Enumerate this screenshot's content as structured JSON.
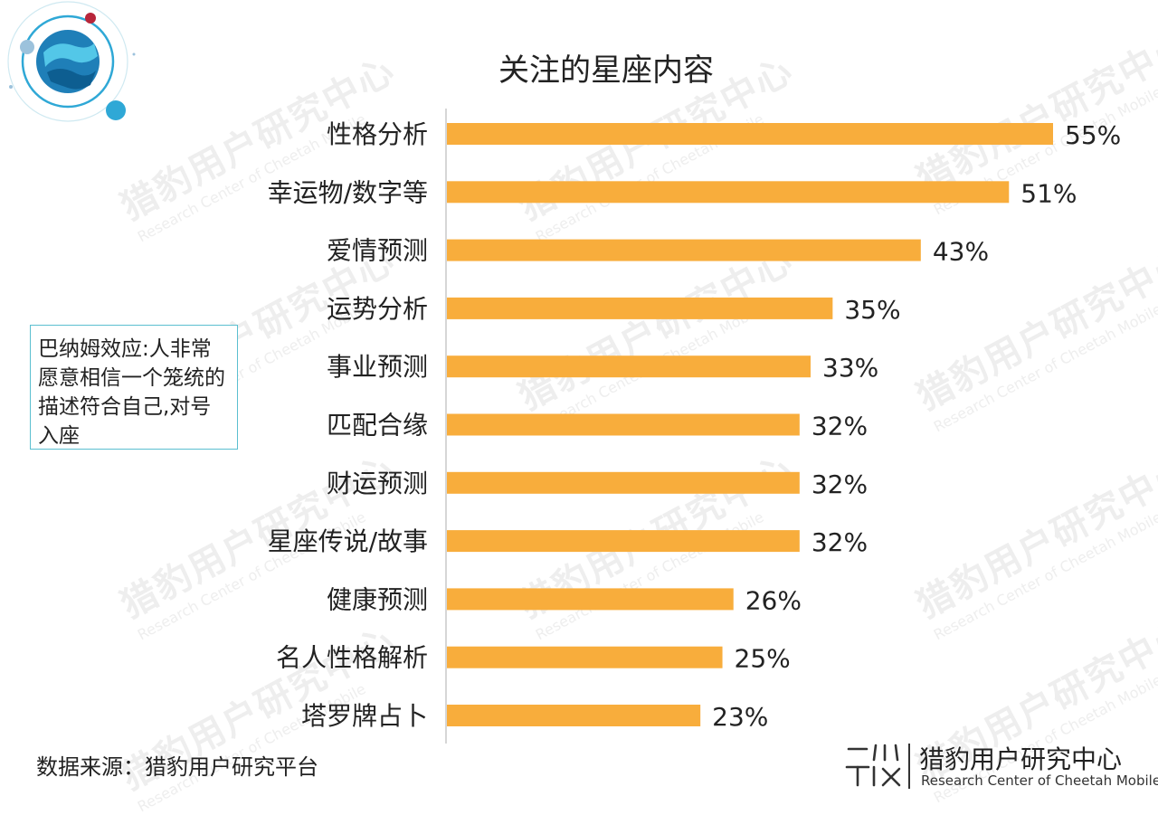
{
  "chart_data": {
    "type": "bar",
    "orientation": "horizontal",
    "title": "关注的星座内容",
    "categories": [
      "性格分析",
      "幸运物/数字等",
      "爱情预测",
      "运势分析",
      "事业预测",
      "匹配合缘",
      "财运预测",
      "星座传说/故事",
      "健康预测",
      "名人性格解析",
      "塔罗牌占卜"
    ],
    "values": [
      55,
      51,
      43,
      35,
      33,
      32,
      32,
      32,
      26,
      25,
      23
    ],
    "value_labels": [
      "55%",
      "51%",
      "43%",
      "35%",
      "33%",
      "32%",
      "32%",
      "32%",
      "26%",
      "25%",
      "23%"
    ],
    "unit": "%",
    "xlim": [
      0,
      55
    ],
    "grid": false,
    "legend": "none",
    "bar_color": "#f8ad3c"
  },
  "note": "巴纳姆效应:人非常愿意相信一个笼统的描述符合自己,对号入座",
  "source": "数据来源：猎豹用户研究平台",
  "brand": {
    "name": "猎豹用户研究中心",
    "subtitle": "Research Center of Cheetah Mobile"
  },
  "colors": {
    "bar": "#f8ad3c",
    "accent": "#2fa8d6",
    "note_border": "#5bbfd0",
    "watermark": "#eeeeee"
  }
}
